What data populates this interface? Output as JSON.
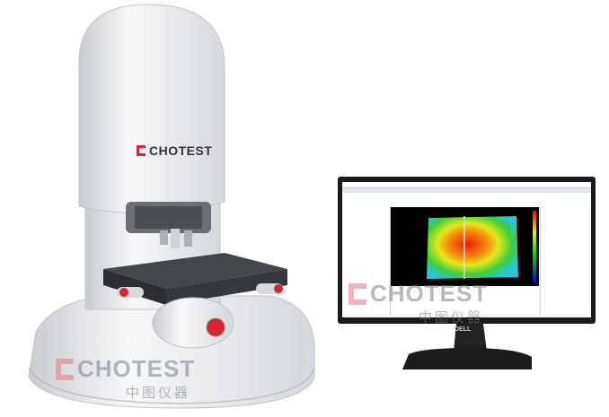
{
  "product": {
    "brand_logo": "CHOTEST",
    "monitor_brand": "DELL"
  },
  "watermarks": [
    {
      "name": "CHOTEST",
      "chinese": "中图仪器"
    },
    {
      "name": "CHOTEST",
      "chinese": "中图仪器"
    }
  ],
  "colors": {
    "brand_red": "#d9232e",
    "machine_white": "#eceef0",
    "stage_dark": "#3a3d42",
    "monitor_black": "#1a1a1a"
  }
}
